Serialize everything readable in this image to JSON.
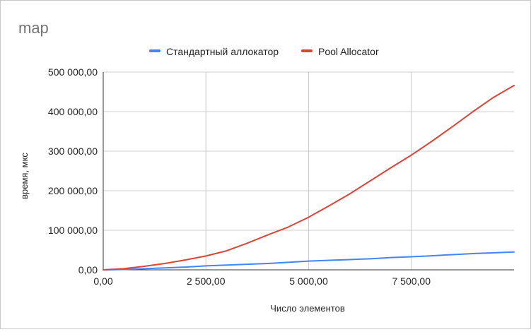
{
  "chart_data": {
    "type": "line",
    "title": "map",
    "xlabel": "Число элементов",
    "ylabel": "время, мкс",
    "xlim": [
      0,
      10000
    ],
    "ylim": [
      0,
      500000
    ],
    "xticks": [
      0,
      2500,
      5000,
      7500
    ],
    "xtick_labels": [
      "0,00",
      "2 500,00",
      "5 000,00",
      "7 500,00"
    ],
    "yticks": [
      0,
      100000,
      200000,
      300000,
      400000,
      500000
    ],
    "ytick_labels": [
      "0,00",
      "100 000,00",
      "200 000,00",
      "300 000,00",
      "400 000,00",
      "500 000,00"
    ],
    "grid": true,
    "legend_position": "top",
    "series": [
      {
        "name": "Стандартный аллокатор",
        "color": "#4285f4",
        "points": [
          [
            0,
            0
          ],
          [
            500,
            1000
          ],
          [
            1000,
            3000
          ],
          [
            1500,
            5000
          ],
          [
            2000,
            7000
          ],
          [
            2500,
            10000
          ],
          [
            3000,
            12000
          ],
          [
            3500,
            14000
          ],
          [
            4000,
            16000
          ],
          [
            4500,
            19000
          ],
          [
            5000,
            22000
          ],
          [
            5500,
            24000
          ],
          [
            6000,
            26000
          ],
          [
            6500,
            28000
          ],
          [
            7000,
            31000
          ],
          [
            7500,
            33000
          ],
          [
            8000,
            35500
          ],
          [
            8500,
            38500
          ],
          [
            9000,
            41000
          ],
          [
            9500,
            43000
          ],
          [
            10000,
            45000
          ]
        ]
      },
      {
        "name": "Pool Allocator",
        "color": "#db4437",
        "points": [
          [
            0,
            0
          ],
          [
            500,
            3000
          ],
          [
            1000,
            9000
          ],
          [
            1500,
            16000
          ],
          [
            2000,
            25000
          ],
          [
            2500,
            35000
          ],
          [
            3000,
            48000
          ],
          [
            3500,
            67000
          ],
          [
            4000,
            88000
          ],
          [
            4500,
            108000
          ],
          [
            5000,
            133000
          ],
          [
            5500,
            162000
          ],
          [
            6000,
            192000
          ],
          [
            6500,
            225000
          ],
          [
            7000,
            258000
          ],
          [
            7500,
            290000
          ],
          [
            8000,
            325000
          ],
          [
            8500,
            362000
          ],
          [
            9000,
            400000
          ],
          [
            9500,
            436000
          ],
          [
            10000,
            466000
          ]
        ]
      }
    ]
  }
}
